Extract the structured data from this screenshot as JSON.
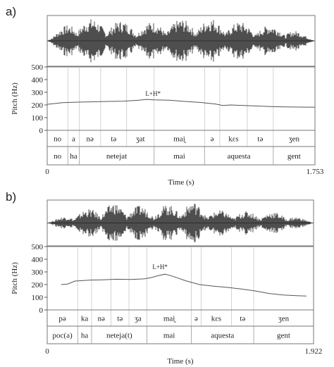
{
  "chart_data": [
    {
      "type": "line",
      "panel_label": "a)",
      "ylabel": "Pitch (Hz)",
      "xlabel": "Time (s)",
      "ylim": [
        0,
        500
      ],
      "yticks": [
        0,
        100,
        200,
        300,
        400,
        500
      ],
      "xlim": [
        0,
        1.753
      ],
      "x_tick_labels": [
        "0",
        "1.753"
      ],
      "annotation": {
        "text": "L+H*",
        "x": 0.68,
        "y": 272
      },
      "series": [
        {
          "x": [
            0.0,
            0.1,
            0.2,
            0.3,
            0.4,
            0.5,
            0.6,
            0.65,
            0.7,
            0.8,
            0.9,
            1.0,
            1.1,
            1.15,
            1.2,
            1.3,
            1.4,
            1.5,
            1.6,
            1.7,
            1.753
          ],
          "y": [
            205,
            218,
            222,
            225,
            228,
            230,
            238,
            244,
            240,
            238,
            228,
            220,
            208,
            196,
            200,
            195,
            190,
            186,
            184,
            183,
            183
          ]
        }
      ],
      "phones": [
        {
          "label": "no",
          "start": 0.0,
          "end": 0.135
        },
        {
          "label": "a",
          "start": 0.135,
          "end": 0.21
        },
        {
          "label": "nə",
          "start": 0.21,
          "end": 0.35
        },
        {
          "label": "tə",
          "start": 0.35,
          "end": 0.52
        },
        {
          "label": "ʒat",
          "start": 0.52,
          "end": 0.7
        },
        {
          "label": "mai̯",
          "start": 0.7,
          "end": 1.03
        },
        {
          "label": "ə",
          "start": 1.03,
          "end": 1.13
        },
        {
          "label": "kɛs",
          "start": 1.13,
          "end": 1.31
        },
        {
          "label": "tə",
          "start": 1.31,
          "end": 1.48
        },
        {
          "label": "ʒen",
          "start": 1.48,
          "end": 1.753
        }
      ],
      "words": [
        {
          "label": "no",
          "start": 0.0,
          "end": 0.135
        },
        {
          "label": "ha",
          "start": 0.135,
          "end": 0.21
        },
        {
          "label": "netejat",
          "start": 0.21,
          "end": 0.7
        },
        {
          "label": "mai",
          "start": 0.7,
          "end": 1.03
        },
        {
          "label": "aquesta",
          "start": 1.03,
          "end": 1.48
        },
        {
          "label": "gent",
          "start": 1.48,
          "end": 1.753
        }
      ]
    },
    {
      "type": "line",
      "panel_label": "b)",
      "ylabel": "Pitch (Hz)",
      "xlabel": "Time (s)",
      "ylim": [
        0,
        500
      ],
      "yticks": [
        0,
        100,
        200,
        300,
        400,
        500
      ],
      "xlim": [
        0,
        1.922
      ],
      "x_tick_labels": [
        "0",
        "1.922"
      ],
      "annotation": {
        "text": "L+H*",
        "x": 0.8,
        "y": 322
      },
      "series": [
        {
          "x": [
            0.1,
            0.15,
            0.2,
            0.3,
            0.4,
            0.5,
            0.6,
            0.7,
            0.75,
            0.8,
            0.85,
            0.9,
            1.0,
            1.1,
            1.2,
            1.3,
            1.4,
            1.5,
            1.6,
            1.7,
            1.8,
            1.87
          ],
          "y": [
            200,
            205,
            228,
            235,
            238,
            242,
            240,
            245,
            255,
            270,
            282,
            268,
            230,
            200,
            188,
            178,
            165,
            150,
            130,
            118,
            112,
            110
          ]
        }
      ],
      "phones": [
        {
          "label": "pə",
          "start": 0.0,
          "end": 0.22
        },
        {
          "label": "ka",
          "start": 0.22,
          "end": 0.32
        },
        {
          "label": "nə",
          "start": 0.32,
          "end": 0.46
        },
        {
          "label": "tə",
          "start": 0.46,
          "end": 0.59
        },
        {
          "label": "ʒa",
          "start": 0.59,
          "end": 0.72
        },
        {
          "label": "mai̯",
          "start": 0.72,
          "end": 1.04
        },
        {
          "label": "ə",
          "start": 1.04,
          "end": 1.11
        },
        {
          "label": "kɛs",
          "start": 1.11,
          "end": 1.33
        },
        {
          "label": "tə",
          "start": 1.33,
          "end": 1.49
        },
        {
          "label": "ʒen",
          "start": 1.49,
          "end": 1.922
        }
      ],
      "words": [
        {
          "label": "poc(a)",
          "start": 0.0,
          "end": 0.22
        },
        {
          "label": "ha",
          "start": 0.22,
          "end": 0.32
        },
        {
          "label": "neteja(t)",
          "start": 0.32,
          "end": 0.72
        },
        {
          "label": "mai",
          "start": 0.72,
          "end": 1.04
        },
        {
          "label": "aquesta",
          "start": 1.04,
          "end": 1.49
        },
        {
          "label": "gent",
          "start": 1.49,
          "end": 1.922
        }
      ]
    }
  ]
}
